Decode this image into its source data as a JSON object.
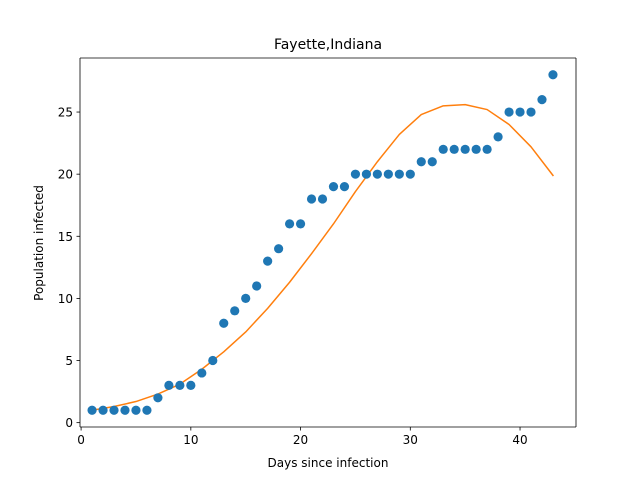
{
  "chart_data": {
    "type": "scatter",
    "title": "Fayette,Indiana",
    "xlabel": "Days since infection",
    "ylabel": "Population infected",
    "xlim": [
      -0.1,
      45.1
    ],
    "ylim": [
      -0.35,
      29.35
    ],
    "xticks": [
      0,
      10,
      20,
      30,
      40
    ],
    "yticks": [
      0,
      5,
      10,
      15,
      20,
      25
    ],
    "grid": false,
    "colors": {
      "observed": "#1f77b4",
      "fit": "#ff7f0e"
    },
    "series": [
      {
        "kind": "scatter",
        "x": [
          1,
          2,
          3,
          4,
          5,
          6,
          7,
          8,
          9,
          10,
          11,
          12,
          13,
          14,
          15,
          16,
          17,
          18,
          19,
          20,
          21,
          22,
          23,
          24,
          25,
          26,
          27,
          28,
          29,
          30,
          31,
          32,
          33,
          34,
          35,
          36,
          37,
          38,
          39,
          40,
          41,
          42,
          43
        ],
        "y": [
          1,
          1,
          1,
          1,
          1,
          1,
          2,
          3,
          3,
          3,
          4,
          5,
          8,
          9,
          10,
          11,
          13,
          14,
          16,
          16,
          18,
          18,
          19,
          19,
          20,
          20,
          20,
          20,
          20,
          20,
          21,
          21,
          22,
          22,
          22,
          22,
          22,
          23,
          25,
          25,
          25,
          26,
          28
        ]
      },
      {
        "kind": "line",
        "x": [
          1,
          3,
          5,
          7,
          9,
          11,
          13,
          15,
          17,
          19,
          21,
          23,
          25,
          27,
          29,
          31,
          33,
          35,
          37,
          39,
          41,
          43
        ],
        "y": [
          1.0,
          1.3,
          1.7,
          2.3,
          3.1,
          4.3,
          5.7,
          7.3,
          9.2,
          11.3,
          13.6,
          16.0,
          18.6,
          21.0,
          23.2,
          24.8,
          25.5,
          25.6,
          25.2,
          24.0,
          22.2,
          19.9
        ]
      }
    ]
  }
}
